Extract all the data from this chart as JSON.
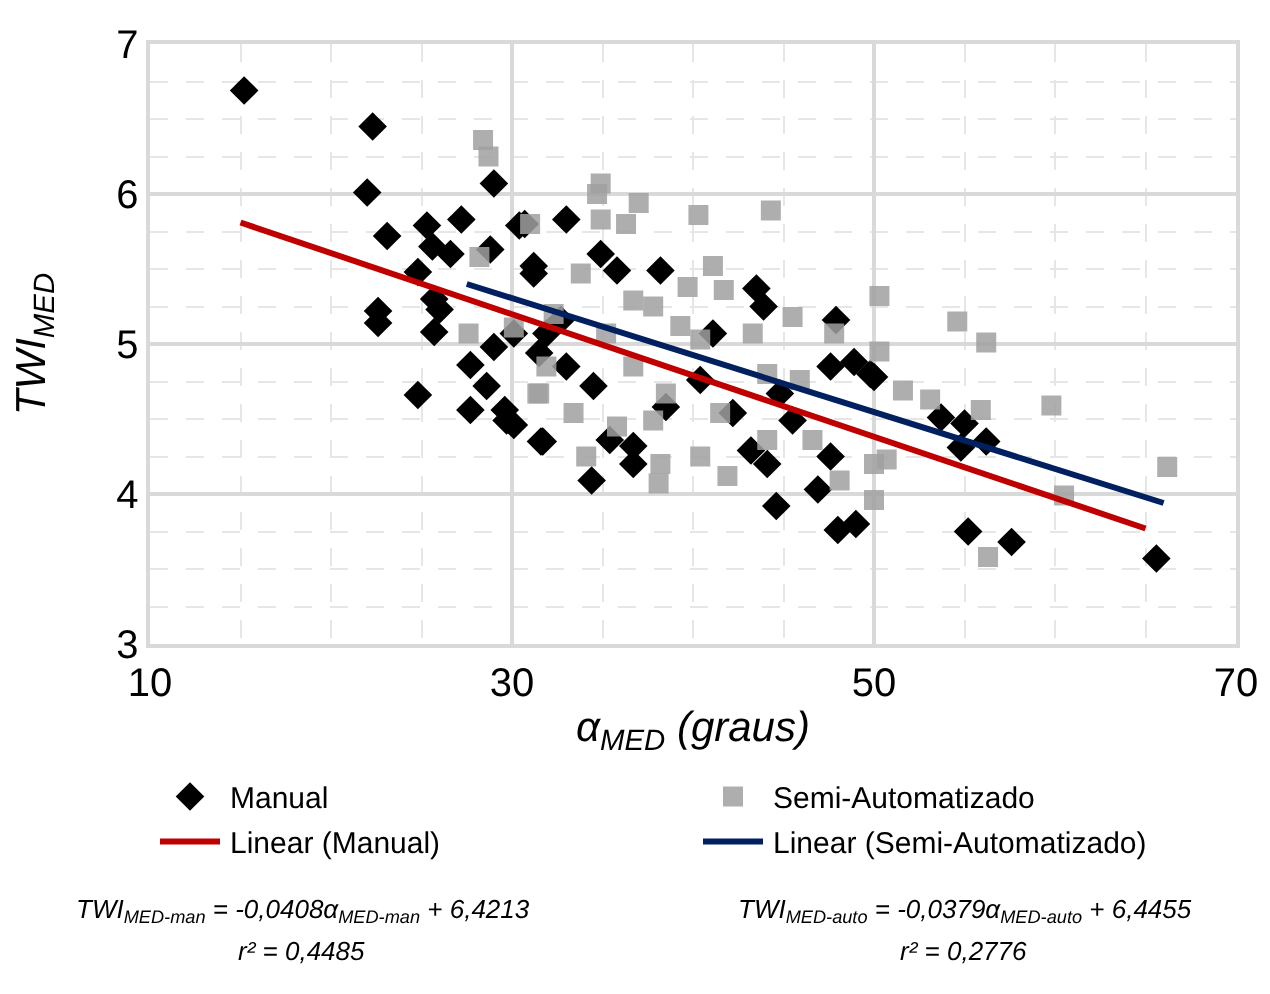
{
  "chart_data": {
    "type": "scatter",
    "xlabel": "α$_{MED}$ (graus)",
    "ylabel": "TWI$_{MED}$",
    "xlim": [
      10,
      70
    ],
    "xticks": [
      10,
      30,
      50,
      70
    ],
    "ylim": [
      3,
      7
    ],
    "yticks": [
      3,
      4,
      5,
      6,
      7
    ],
    "grid": true,
    "legend": "bottom",
    "series": [
      {
        "name": "Manual",
        "color": "#000000",
        "marker": "diamond",
        "x": [
          15.2,
          22.3,
          22.0,
          29.0,
          23.1,
          22.6,
          22.6,
          25.3,
          25.6,
          26.6,
          27.2,
          24.8,
          25.7,
          26.0,
          25.7,
          24.8,
          27.7,
          27.7,
          29.6,
          30.1,
          31.6,
          28.8,
          28.6,
          29.0,
          30.4,
          31.2,
          31.9,
          33.0,
          30.7,
          38.2,
          35.8,
          43.5,
          43.9,
          47.9,
          48.9,
          47.6,
          50.0,
          31.7,
          34.4,
          36.7,
          36.7,
          35.4,
          44.6,
          46.9,
          48.0,
          49.0,
          44.1,
          43.2,
          47.6,
          29.7,
          31.2,
          32.7,
          34.5,
          38.5,
          40.4,
          42.2,
          44.8,
          33.0,
          34.9,
          41.1,
          45.5,
          30.1,
          31.5,
          53.7,
          55.0,
          54.8,
          56.2,
          55.2,
          57.6,
          65.6,
          49.8
        ],
        "values": [
          6.69,
          6.45,
          6.01,
          6.07,
          5.72,
          5.22,
          5.14,
          5.79,
          5.65,
          5.6,
          5.83,
          5.48,
          5.3,
          5.23,
          5.08,
          4.66,
          4.86,
          4.56,
          4.56,
          4.46,
          4.35,
          5.63,
          4.72,
          4.98,
          5.79,
          5.52,
          5.07,
          5.83,
          5.8,
          5.49,
          5.49,
          5.37,
          5.25,
          5.16,
          4.88,
          4.85,
          4.78,
          4.35,
          4.09,
          4.32,
          4.2,
          4.36,
          3.92,
          4.03,
          3.76,
          3.8,
          4.2,
          4.29,
          4.25,
          4.49,
          5.47,
          5.16,
          4.72,
          4.58,
          4.76,
          4.54,
          4.67,
          4.85,
          5.6,
          5.07,
          4.49,
          5.07,
          4.94,
          4.51,
          4.47,
          4.31,
          4.35,
          3.75,
          3.68,
          3.57,
          4.8
        ]
      },
      {
        "name": "Semi-Automatizado",
        "color": "#a0a0a0",
        "marker": "square",
        "x": [
          28.4,
          28.7,
          28.2,
          27.6,
          31.4,
          31.0,
          30.1,
          31.9,
          34.9,
          34.7,
          37.0,
          34.9,
          36.3,
          40.3,
          44.3,
          41.1,
          41.7,
          45.5,
          50.3,
          50.3,
          47.8,
          38.2,
          38.1,
          34.1,
          41.9,
          40.4,
          48.1,
          50.0,
          46.6,
          44.1,
          35.8,
          33.4,
          31.5,
          33.8,
          37.8,
          39.3,
          36.7,
          38.5,
          40.4,
          43.3,
          44.1,
          39.7,
          35.2,
          41.5,
          32.3,
          45.9,
          36.7,
          37.8,
          54.6,
          56.2,
          51.6,
          53.1,
          55.9,
          59.8,
          60.5,
          66.2,
          56.3,
          50.7,
          50.0
        ],
        "values": [
          6.36,
          6.25,
          5.58,
          5.07,
          4.67,
          5.8,
          5.11,
          4.85,
          6.07,
          6.0,
          5.94,
          5.83,
          5.8,
          5.86,
          5.89,
          5.52,
          5.36,
          5.18,
          5.32,
          4.95,
          5.07,
          4.2,
          4.07,
          4.25,
          4.12,
          4.25,
          4.09,
          4.2,
          4.36,
          4.36,
          4.45,
          4.54,
          4.67,
          5.47,
          5.25,
          5.12,
          4.85,
          4.67,
          5.03,
          5.07,
          4.8,
          5.38,
          5.07,
          4.54,
          5.2,
          4.76,
          5.29,
          4.49,
          5.15,
          5.01,
          4.69,
          4.63,
          4.56,
          4.59,
          3.99,
          4.18,
          3.58,
          4.23,
          3.96
        ]
      },
      {
        "type": "line",
        "name": "Linear (Manual)",
        "color": "#c00000",
        "x": [
          15,
          65
        ],
        "values": [
          5.81,
          3.77
        ]
      },
      {
        "type": "line",
        "name": "Linear (Semi-Automatizado)",
        "color": "#002060",
        "x": [
          27.5,
          66
        ],
        "values": [
          5.4,
          3.94
        ]
      }
    ],
    "annotations": [
      "TWI$_{MED-man}$ = -0,0408α$_{MED-man}$ + 6,4213",
      "r² = 0,4485",
      "TWI$_{MED-auto}$ = -0,0379α$_{MED-auto}$ + 6,4455",
      "r² = 0,2776"
    ]
  }
}
